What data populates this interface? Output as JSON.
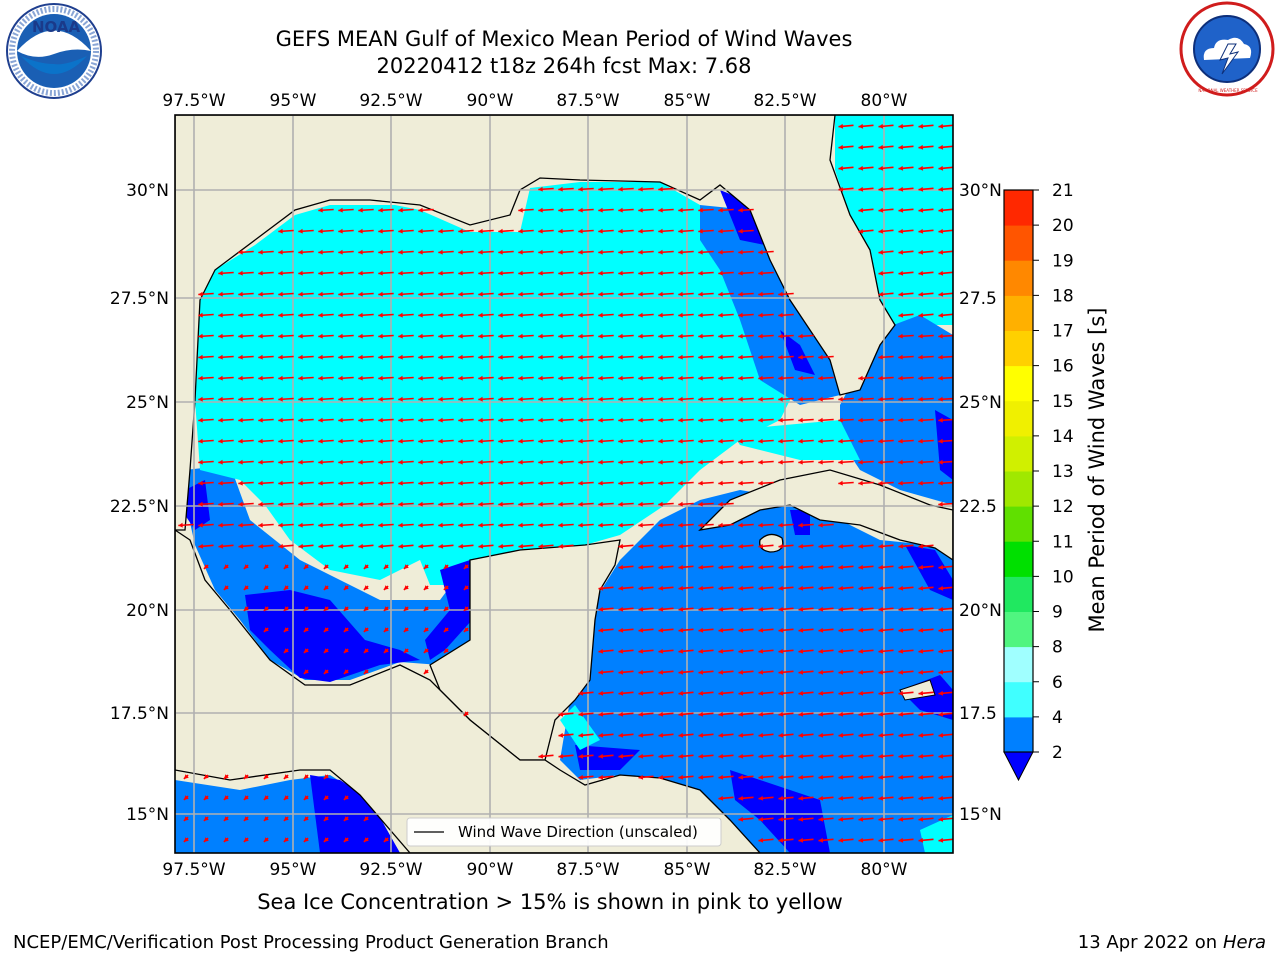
{
  "header": {
    "title_line1": "GEFS MEAN Gulf of Mexico Mean Period of Wind Waves",
    "title_line2": "20220412 t18z 264h fcst   Max: 7.68"
  },
  "map": {
    "lon_labels_top": [
      "97.5°W",
      "95°W",
      "92.5°W",
      "90°W",
      "87.5°W",
      "85°W",
      "82.5°W",
      "80°W"
    ],
    "lon_labels_bottom": [
      "97.5°W",
      "95°W",
      "92.5°W",
      "90°W",
      "87.5°W",
      "85°W",
      "82.5°W",
      "80°W"
    ],
    "lat_labels_left": [
      "30°N",
      "27.5°N",
      "25°N",
      "22.5°N",
      "20°N",
      "17.5°N",
      "15°N"
    ],
    "lat_labels_right": [
      "30°N",
      "27.5",
      "25°N",
      "22.5",
      "20°N",
      "17.5",
      "15°N"
    ],
    "lon_range": [
      -98,
      -78.25
    ],
    "lat_range": [
      14,
      31.7
    ],
    "legend_label": "Wind Wave Direction (unscaled)",
    "colors": {
      "land": "#efedd8",
      "cyan": "#00ffff",
      "mid_blue": "#0080ff",
      "deep_blue": "#0000ff",
      "arrow": "#ff0000",
      "grid": "#b0b0b0"
    }
  },
  "colorbar": {
    "label": "Mean Period of Wind Waves [s]",
    "tick_labels": [
      "2",
      "4",
      "6",
      "8",
      "9",
      "10",
      "11",
      "12",
      "13",
      "14",
      "15",
      "16",
      "17",
      "18",
      "19",
      "20",
      "21"
    ],
    "band_colors": [
      "#0080ff",
      "#00ffff",
      "#40ffff",
      "#a0ffff",
      "#50f580",
      "#20e860",
      "#00e000",
      "#60e000",
      "#a0e800",
      "#d0f000",
      "#f0f000",
      "#ffff00",
      "#ffd000",
      "#ffb000",
      "#ff8800",
      "#ff5500",
      "#ff2800",
      "#ff0000"
    ],
    "extend_color": "#0000ff"
  },
  "footer": {
    "note": "Sea Ice Concentration > 15% is shown in pink to yellow",
    "credit": "NCEP/EMC/Verification Post Processing Product Generation Branch",
    "date": "13 Apr 2022 on",
    "host": "Hera"
  },
  "logos": {
    "left": "NOAA",
    "right": "NATIONAL WEATHER SERVICE"
  }
}
